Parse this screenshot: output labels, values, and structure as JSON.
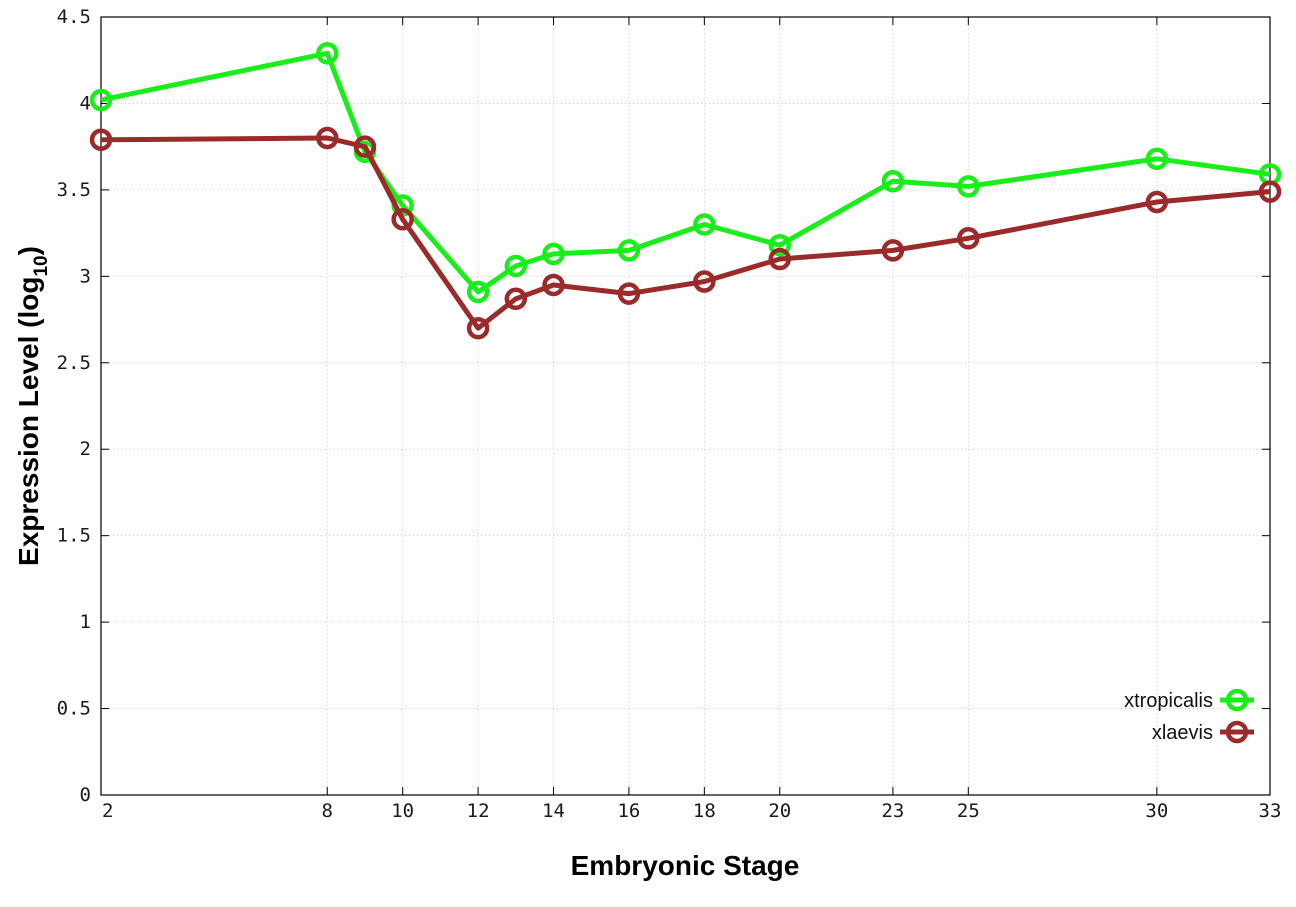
{
  "chart_data": {
    "type": "line",
    "xlabel": "Embryonic Stage",
    "ylabel": "Expression Level",
    "ylabel_sub": "10",
    "ylabel_prefix": "log",
    "xlim": [
      2,
      33
    ],
    "ylim": [
      0,
      4.5
    ],
    "x": [
      2,
      8,
      9,
      10,
      12,
      13,
      14,
      16,
      18,
      20,
      23,
      25,
      30,
      33
    ],
    "x_ticks": [
      2,
      8,
      10,
      12,
      14,
      16,
      18,
      20,
      23,
      25,
      30,
      33
    ],
    "y_ticks": [
      0,
      0.5,
      1,
      1.5,
      2,
      2.5,
      3,
      3.5,
      4,
      4.5
    ],
    "y_tick_labels": [
      "0",
      "0.5",
      "1",
      "1.5",
      "2",
      "2.5",
      "3",
      "3.5",
      "4",
      "4.5"
    ],
    "grid": true,
    "legend_position": "bottom-right",
    "series": [
      {
        "name": "xtropicalis",
        "color": "#1aee1a",
        "values": [
          4.02,
          4.29,
          3.72,
          3.41,
          2.91,
          3.06,
          3.13,
          3.15,
          3.3,
          3.18,
          3.55,
          3.52,
          3.68,
          3.59
        ]
      },
      {
        "name": "xlaevis",
        "color": "#9b2a2a",
        "values": [
          3.79,
          3.8,
          3.75,
          3.33,
          2.7,
          2.87,
          2.95,
          2.9,
          2.97,
          3.1,
          3.15,
          3.22,
          3.43,
          3.49
        ]
      }
    ]
  }
}
